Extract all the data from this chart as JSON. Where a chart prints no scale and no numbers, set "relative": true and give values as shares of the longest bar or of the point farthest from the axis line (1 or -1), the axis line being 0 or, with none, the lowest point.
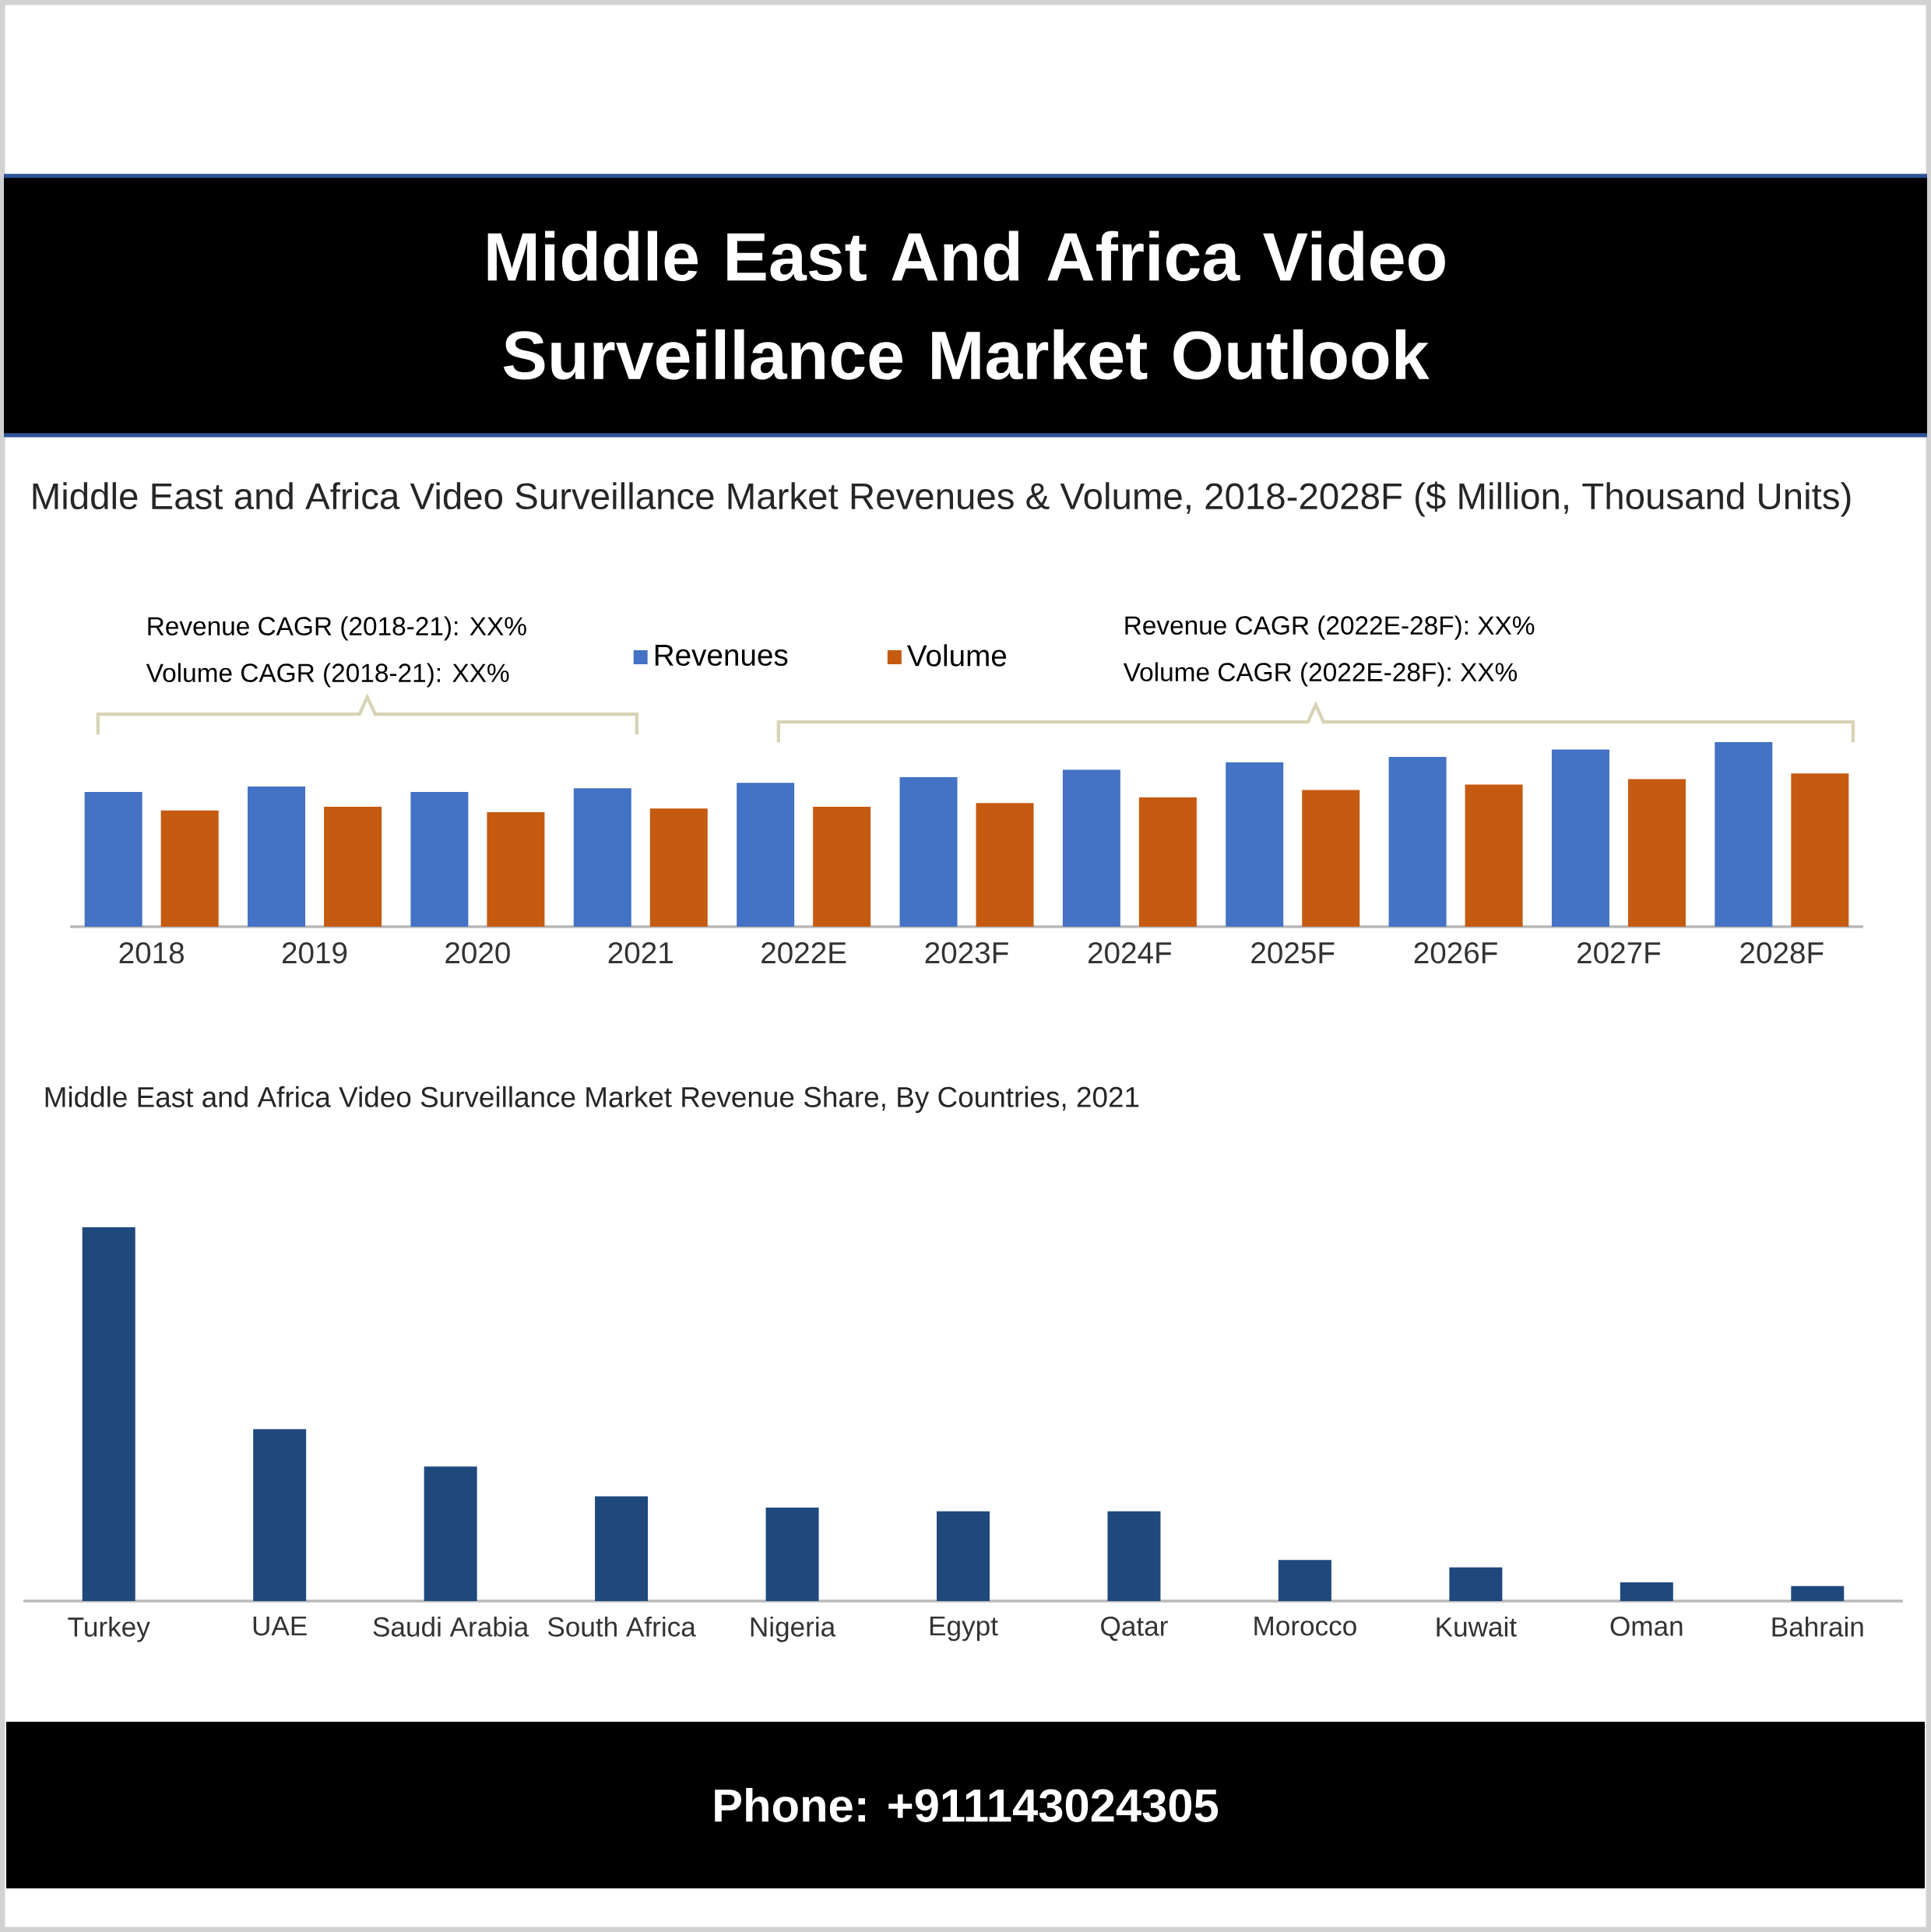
{
  "chart_data": [
    {
      "type": "bar",
      "title": "Middle East And Africa Video Surveillance Market Outlook",
      "subtitle": "Middle East and Africa Video Surveillance Market Revenues & Volume, 2018-2028F ($ Million, Thousand Units)",
      "categories": [
        "2018",
        "2019",
        "2020",
        "2021",
        "2022E",
        "2023F",
        "2024F",
        "2025F",
        "2026F",
        "2027F",
        "2028F"
      ],
      "relative": true,
      "legend": "top",
      "series": [
        {
          "name": "Revenues",
          "color": "#4472c4",
          "values": [
            0.73,
            0.76,
            0.73,
            0.75,
            0.78,
            0.81,
            0.85,
            0.89,
            0.92,
            0.96,
            1.0
          ]
        },
        {
          "name": "Volume",
          "color": "#c55a11",
          "values": [
            0.63,
            0.65,
            0.62,
            0.64,
            0.65,
            0.67,
            0.7,
            0.74,
            0.77,
            0.8,
            0.83
          ]
        }
      ],
      "annotations": [
        "Revenue CAGR (2018-21): XX%",
        "Volume CAGR (2018-21): XX%",
        "Revenue CAGR (2022E-28F): XX%",
        "Volume CAGR (2022E-28F): XX%"
      ]
    },
    {
      "type": "bar",
      "title": "Middle East and Africa Video Surveillance Market Revenue Share, By Countries, 2021",
      "categories": [
        "Turkey",
        "UAE",
        "Saudi Arabia",
        "South Africa",
        "Nigeria",
        "Egypt",
        "Qatar",
        "Morocco",
        "Kuwait",
        "Oman",
        "Bahrain"
      ],
      "relative": true,
      "color": "#1f497d",
      "values": [
        1.0,
        0.46,
        0.36,
        0.28,
        0.25,
        0.24,
        0.24,
        0.11,
        0.09,
        0.05,
        0.04
      ],
      "annotations": [
        "Phone: +911143024305"
      ]
    }
  ]
}
